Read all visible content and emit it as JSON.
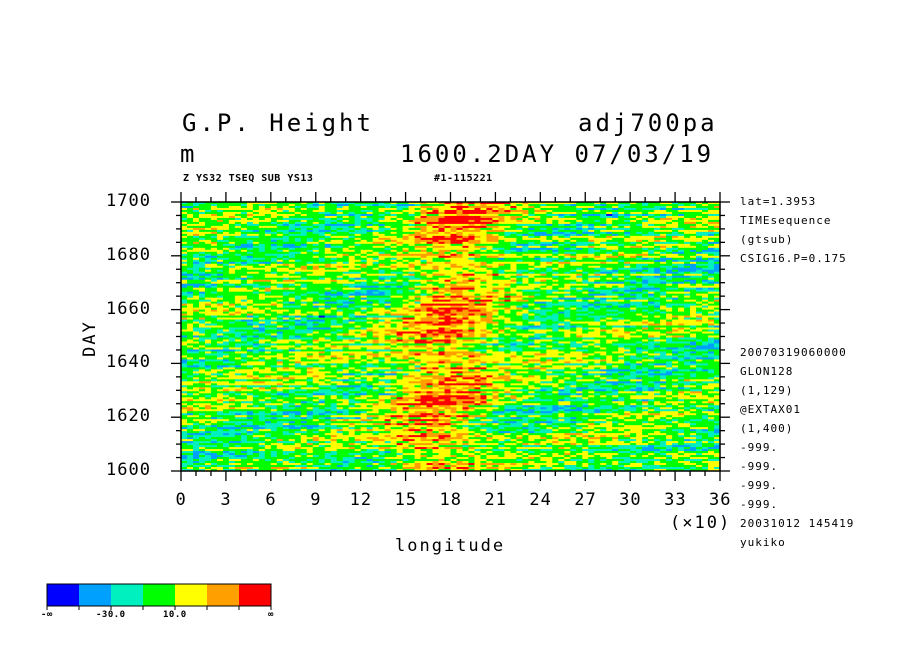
{
  "header": {
    "title": "G.P. Height",
    "units": "m",
    "variable": "adj700pa",
    "time": "1600.2DAY 07/03/19",
    "sub_left": "Z YS32 TSEQ SUB YS13",
    "sub_right": "#1-115221"
  },
  "side_info": {
    "top": [
      "lat=1.3953",
      "TIMEsequence",
      "(gtsub)",
      "CSIG16.P=0.175"
    ],
    "bottom": [
      "20070319060000",
      "GLON128",
      "(1,129)",
      "@EXTAX01",
      "(1,400)",
      "-999.",
      "-999.",
      "-999.",
      "-999.",
      "20031012 145419",
      "yukiko"
    ]
  },
  "colorbar": {
    "labels": [
      "-∞",
      "-30.0",
      "10.0",
      "∞"
    ],
    "colors": [
      "#0000ff",
      "#00a0ff",
      "#00f0c0",
      "#00ff00",
      "#ffff00",
      "#ffa000",
      "#ff0000"
    ]
  },
  "chart_data": {
    "type": "heatmap",
    "xlabel": "longitude",
    "ylabel": "DAY",
    "x_scale_note": "(×10)",
    "xlim": [
      0,
      36
    ],
    "ylim": [
      1600,
      1700
    ],
    "x_ticks": [
      "0",
      "3",
      "6",
      "9",
      "12",
      "15",
      "18",
      "21",
      "24",
      "27",
      "30",
      "33",
      "36"
    ],
    "y_ticks": [
      "1600",
      "1620",
      "1640",
      "1660",
      "1680",
      "1700"
    ],
    "color_levels": [
      "-∞",
      "-30.0",
      "10.0",
      "∞"
    ],
    "grid": false
  }
}
